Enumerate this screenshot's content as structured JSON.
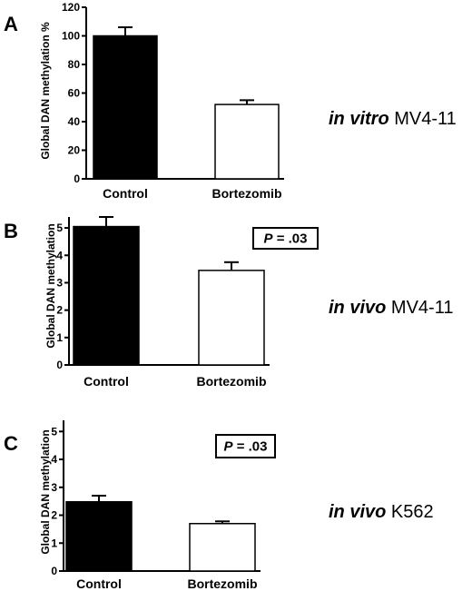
{
  "chart_data": [
    {
      "type": "bar",
      "panel": "A",
      "categories": [
        "Control",
        "Bortezomib"
      ],
      "values": [
        100,
        52
      ],
      "errors": [
        6,
        3
      ],
      "colors": [
        "#000000",
        "#ffffff"
      ],
      "ylabel": "Global DAN methylation %",
      "ylim": [
        0,
        120
      ],
      "yticks": [
        0,
        20,
        40,
        60,
        80,
        100,
        120
      ],
      "condition_italic": "in vitro",
      "condition_rest": "MV4-11",
      "pvalue_italic": "",
      "pvalue_rest": ""
    },
    {
      "type": "bar",
      "panel": "B",
      "categories": [
        "Control",
        "Bortezomib"
      ],
      "values": [
        5.05,
        3.45
      ],
      "errors": [
        0.35,
        0.3
      ],
      "colors": [
        "#000000",
        "#ffffff"
      ],
      "ylabel": "Global DAN methylation",
      "ylim": [
        0,
        5.4
      ],
      "yticks": [
        0,
        1,
        2,
        3,
        4,
        5
      ],
      "condition_italic": "in vivo",
      "condition_rest": "MV4-11",
      "pvalue_italic": "P",
      "pvalue_rest": " = .03"
    },
    {
      "type": "bar",
      "panel": "C",
      "categories": [
        "Control",
        "Bortezomib"
      ],
      "values": [
        2.48,
        1.7
      ],
      "errors": [
        0.22,
        0.08
      ],
      "colors": [
        "#000000",
        "#ffffff"
      ],
      "ylabel": "Global DAN methylation",
      "ylim": [
        0,
        5.4
      ],
      "yticks": [
        0,
        1,
        2,
        3,
        4,
        5
      ],
      "condition_italic": "in vivo",
      "condition_rest": "K562",
      "pvalue_italic": "P",
      "pvalue_rest": " = .03"
    }
  ]
}
